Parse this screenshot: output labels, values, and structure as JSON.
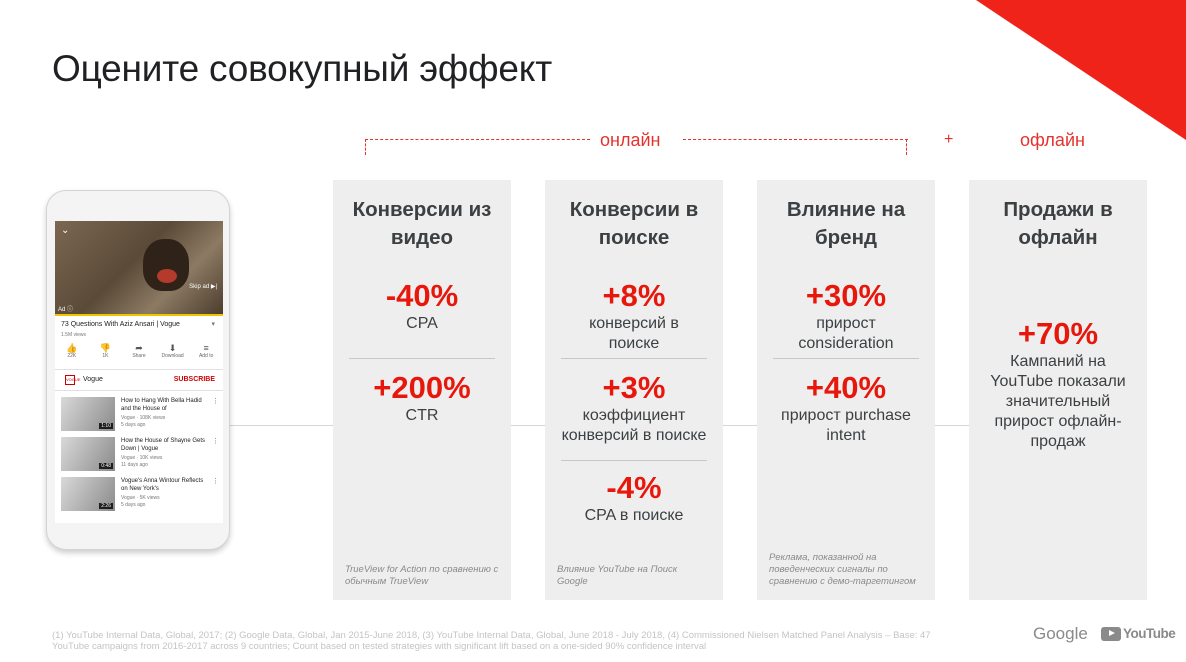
{
  "title": "Оцените совокупный эффект",
  "online_label": "онлайн",
  "plus_label": "+",
  "offline_label": "офлайн",
  "colors": {
    "accent": "#e8170c",
    "card_bg": "#eeeeee"
  },
  "cards": [
    {
      "title": "Конверсии из видео",
      "metrics": [
        {
          "value": "-40%",
          "desc": "CPA"
        },
        {
          "value": "+200%",
          "desc": "CTR"
        }
      ],
      "note": "TrueView for Action по сравнению с обычным TrueView"
    },
    {
      "title": "Конверсии в поиске",
      "metrics": [
        {
          "value": "+8%",
          "desc": "конверсий в поиске"
        },
        {
          "value": "+3%",
          "desc": "коэффициент конверсий в поиске"
        },
        {
          "value": "-4%",
          "desc": "CPA в поиске"
        }
      ],
      "note": "Влияние YouTube на Поиск Google"
    },
    {
      "title": "Влияние на бренд",
      "metrics": [
        {
          "value": "+30%",
          "desc": "прирост consideration"
        },
        {
          "value": "+40%",
          "desc": "прирост purchase intent"
        }
      ],
      "note": "Реклама, показанной на поведенческих сигналы по сравнению с демо-таргетингом"
    },
    {
      "title": "Продажи в офлайн",
      "metrics": [
        {
          "value": "+70%",
          "desc": "Кампаний на YouTube показали значительный прирост офлайн-продаж"
        }
      ],
      "note": ""
    }
  ],
  "phone": {
    "video_title": "73 Questions With Aziz Ansari | Vogue",
    "video_views": "1.5M views",
    "skip_ad": "Skip ad",
    "ad_label": "Ad",
    "actions": [
      {
        "icon": "thumbs-up-icon",
        "glyph": "👍",
        "label": "22K"
      },
      {
        "icon": "thumbs-down-icon",
        "glyph": "👎",
        "label": "1K"
      },
      {
        "icon": "share-icon",
        "glyph": "➦",
        "label": "Share"
      },
      {
        "icon": "download-icon",
        "glyph": "⬇",
        "label": "Download"
      },
      {
        "icon": "add-to-icon",
        "glyph": "≡",
        "label": "Add to"
      }
    ],
    "channel": "Vogue",
    "subscribe": "SUBSCRIBE",
    "list": [
      {
        "title": "How to Hang With Bella Hadid and the House of",
        "meta1": "Vogue · 108K views",
        "meta2": "5 days ago",
        "duration": "1:10"
      },
      {
        "title": "How the House of Shayne Gets Down | Vogue",
        "meta1": "Vogue · 10K views",
        "meta2": "11 days ago",
        "duration": "0:48"
      },
      {
        "title": "Vogue's Anna Wintour Reflects on New York's",
        "meta1": "Vogue · 5K views",
        "meta2": "5 days ago",
        "duration": "2:26"
      }
    ]
  },
  "footnote": "(1) YouTube Internal Data, Global, 2017; (2) Google Data, Global, Jan 2015-June 2018, (3) YouTube Internal Data, Global, June 2018 - July 2018, (4) Commissioned Nielsen Matched Panel Analysis – Base: 47 YouTube campaigns from 2016-2017 across 9 countries; Count based on tested strategies with significant lift based on a one-sided 90% confidence interval",
  "logos": {
    "google": "Google",
    "youtube": "YouTube"
  }
}
